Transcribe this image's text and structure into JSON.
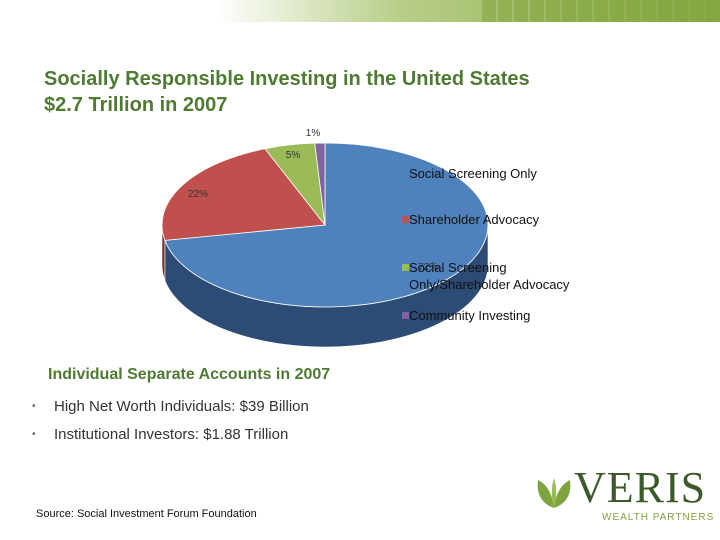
{
  "slide": {
    "title_line1": "Socially Responsible Investing in the United States",
    "title_line2": "$2.7 Trillion in 2007",
    "subtitle": "Individual Separate Accounts in 2007",
    "bullets": [
      "High Net Worth Individuals: $39 Billion",
      "Institutional Investors: $1.88 Trillion"
    ],
    "bullet_glyph": "•",
    "source": "Source: Social Investment Forum Foundation"
  },
  "logo": {
    "word": "VERIS",
    "tagline": "WEALTH PARTNERS",
    "icon": "leaf-icon",
    "color_dark": "#3d5a2a",
    "color_light": "#7fa43d"
  },
  "chart_data": {
    "type": "pie",
    "title": "",
    "slices": [
      {
        "label": "Social Screening Only",
        "value": 72,
        "data_label": "72%",
        "color": "#4f81bd",
        "side_color": "#2c4b75"
      },
      {
        "label": "Shareholder Advocacy",
        "value": 22,
        "data_label": "22%",
        "color": "#c0504d",
        "side_color": "#7a2e2c"
      },
      {
        "label": "Social Screening Only/Shareholder Advocacy",
        "value": 5,
        "data_label": "5%",
        "color": "#9bbb59",
        "side_color": "#5d7a2a"
      },
      {
        "label": "Community Investing",
        "value": 1,
        "data_label": "1%",
        "color": "#8064a2",
        "side_color": "#4a3763"
      }
    ],
    "legend_placement": "right",
    "three_d": true
  }
}
